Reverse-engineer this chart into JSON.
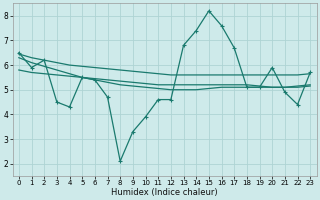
{
  "xlabel": "Humidex (Indice chaleur)",
  "bg_color": "#ceeaea",
  "grid_color": "#aed4d4",
  "line_color": "#1a7a6e",
  "xlim": [
    -0.5,
    23.5
  ],
  "ylim": [
    1.5,
    8.5
  ],
  "yticks": [
    2,
    3,
    4,
    5,
    6,
    7,
    8
  ],
  "xticks": [
    0,
    1,
    2,
    3,
    4,
    5,
    6,
    7,
    8,
    9,
    10,
    11,
    12,
    13,
    14,
    15,
    16,
    17,
    18,
    19,
    20,
    21,
    22,
    23
  ],
  "lines": [
    {
      "x": [
        0,
        1,
        2,
        3,
        4,
        5,
        6,
        7,
        8,
        9,
        10,
        11,
        12,
        13,
        14,
        15,
        16,
        17,
        18,
        19,
        20,
        21,
        22,
        23
      ],
      "y": [
        6.5,
        5.9,
        6.2,
        4.5,
        4.3,
        5.5,
        5.4,
        4.7,
        2.1,
        3.3,
        3.9,
        4.6,
        4.6,
        6.8,
        7.4,
        8.2,
        7.6,
        6.7,
        5.1,
        5.1,
        5.9,
        4.9,
        4.4,
        5.7
      ],
      "marker": true,
      "lw": 0.9
    },
    {
      "x": [
        0,
        1,
        2,
        3,
        4,
        5,
        6,
        7,
        8,
        9,
        10,
        11,
        12,
        13,
        14,
        15,
        16,
        17,
        18,
        19,
        20,
        21,
        22,
        23
      ],
      "y": [
        6.45,
        6.3,
        6.2,
        6.1,
        6.0,
        5.95,
        5.9,
        5.85,
        5.8,
        5.75,
        5.7,
        5.65,
        5.6,
        5.6,
        5.6,
        5.6,
        5.6,
        5.6,
        5.6,
        5.6,
        5.6,
        5.6,
        5.6,
        5.65
      ],
      "marker": false,
      "lw": 0.9
    },
    {
      "x": [
        0,
        1,
        2,
        3,
        4,
        5,
        6,
        7,
        8,
        9,
        10,
        11,
        12,
        13,
        14,
        15,
        16,
        17,
        18,
        19,
        20,
        21,
        22,
        23
      ],
      "y": [
        6.3,
        6.1,
        5.95,
        5.8,
        5.65,
        5.5,
        5.4,
        5.3,
        5.2,
        5.15,
        5.1,
        5.05,
        5.0,
        5.0,
        5.0,
        5.05,
        5.1,
        5.1,
        5.1,
        5.1,
        5.1,
        5.1,
        5.15,
        5.2
      ],
      "marker": false,
      "lw": 0.9
    },
    {
      "x": [
        0,
        1,
        2,
        3,
        4,
        5,
        6,
        7,
        8,
        9,
        10,
        11,
        12,
        13,
        14,
        15,
        16,
        17,
        18,
        19,
        20,
        21,
        22,
        23
      ],
      "y": [
        5.8,
        5.7,
        5.65,
        5.6,
        5.55,
        5.5,
        5.45,
        5.4,
        5.35,
        5.3,
        5.25,
        5.2,
        5.2,
        5.2,
        5.2,
        5.2,
        5.2,
        5.2,
        5.2,
        5.15,
        5.1,
        5.1,
        5.1,
        5.15
      ],
      "marker": false,
      "lw": 0.9
    }
  ]
}
